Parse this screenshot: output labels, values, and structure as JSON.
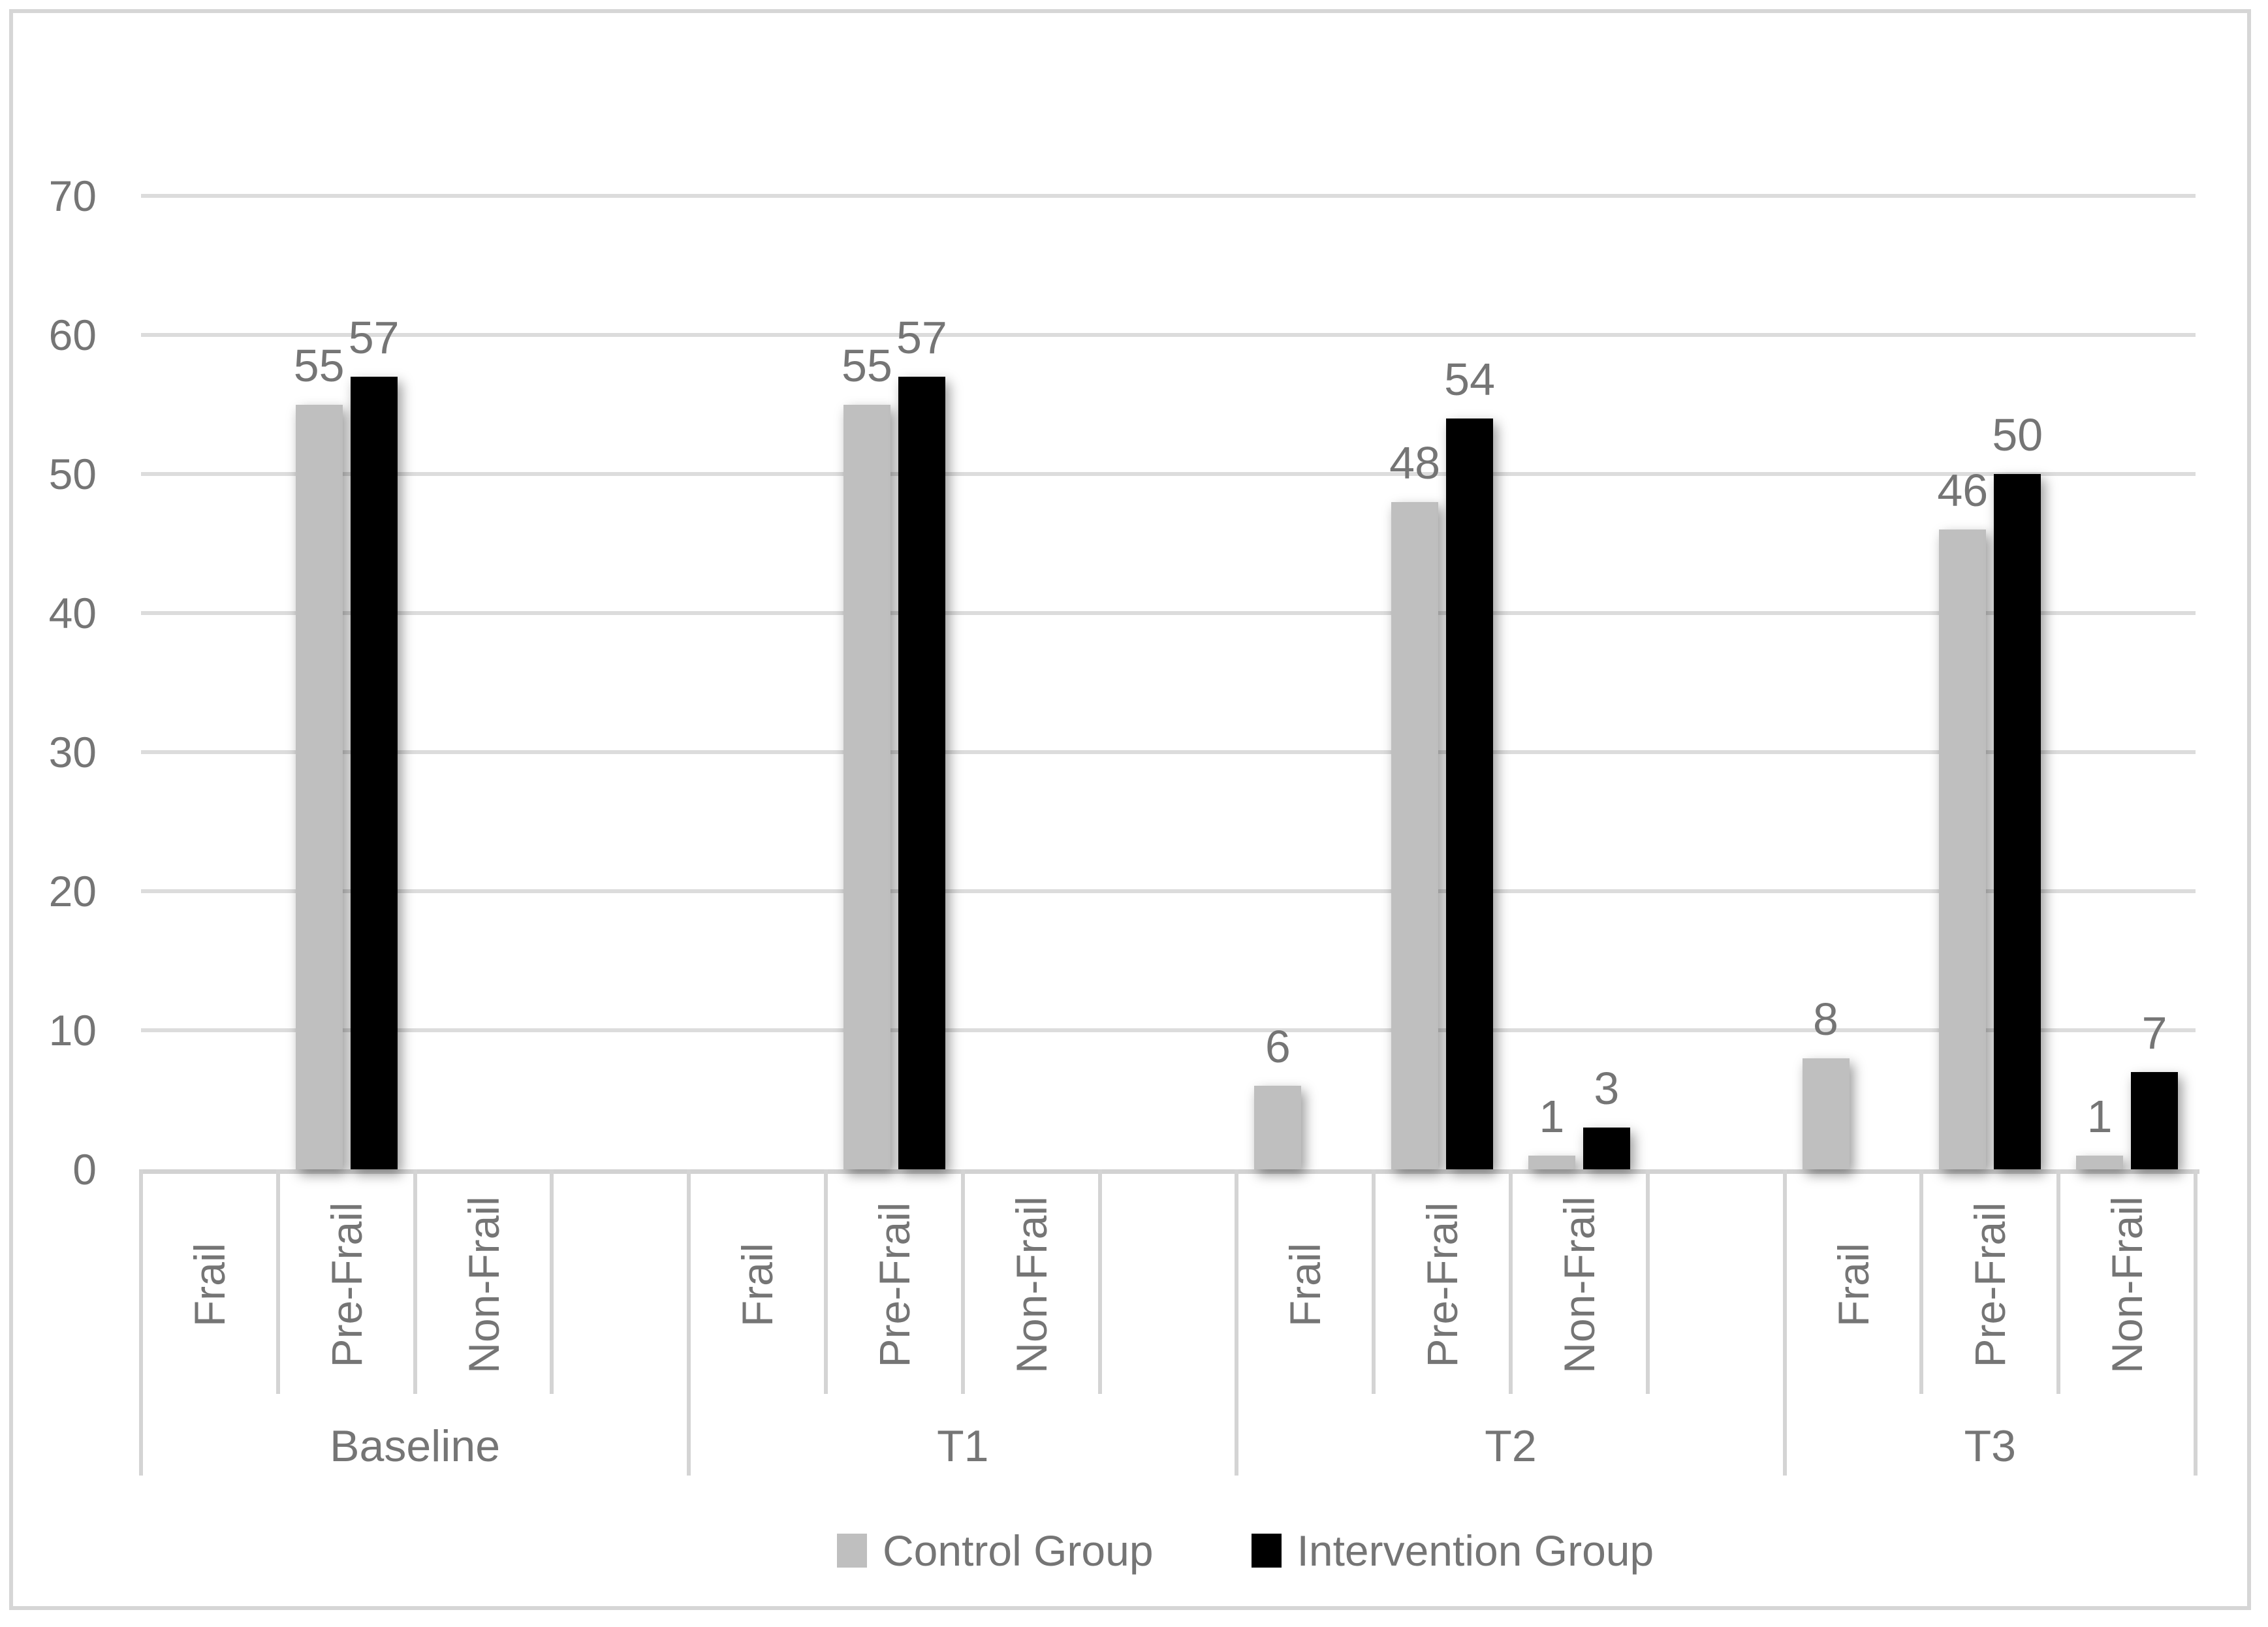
{
  "figure": {
    "title": "",
    "description": "Grouped vertical bar chart of frailty status counts by time point"
  },
  "chart_data": {
    "type": "bar",
    "title": "",
    "xlabel": "",
    "ylabel": "",
    "groups": [
      "Baseline",
      "T1",
      "T2",
      "T3"
    ],
    "categories": [
      "Frail",
      "Pre-Frail",
      "Non-Frail"
    ],
    "series": [
      {
        "name": "Control Group",
        "color": "#bfbfbf",
        "values": {
          "Baseline": [
            0,
            55,
            0
          ],
          "T1": [
            0,
            55,
            0
          ],
          "T2": [
            6,
            48,
            1
          ],
          "T3": [
            8,
            46,
            1
          ]
        }
      },
      {
        "name": "Intervention Group",
        "color": "#000000",
        "values": {
          "Baseline": [
            0,
            57,
            0
          ],
          "T1": [
            0,
            57,
            0
          ],
          "T2": [
            0,
            54,
            3
          ],
          "T3": [
            0,
            50,
            7
          ]
        }
      }
    ],
    "ylim": [
      0,
      70
    ],
    "yticks": [
      0,
      10,
      20,
      30,
      40,
      50,
      60,
      70
    ],
    "grid": true,
    "legend_position": "bottom",
    "data_labels": "value shown above each non-zero bar",
    "spacer_slot_after_group": [
      true,
      true,
      true,
      false
    ]
  },
  "legend": {
    "items": [
      "Control Group",
      "Intervention Group"
    ]
  },
  "colors": {
    "control_bar": "#bfbfbf",
    "intervention_bar": "#000000",
    "text": "#757575",
    "gridline": "#dcdcdc",
    "axis_line": "#d2d2d2",
    "divider": "#d4d4d4",
    "figure_border": "#d6d6d6",
    "background": "#ffffff"
  }
}
